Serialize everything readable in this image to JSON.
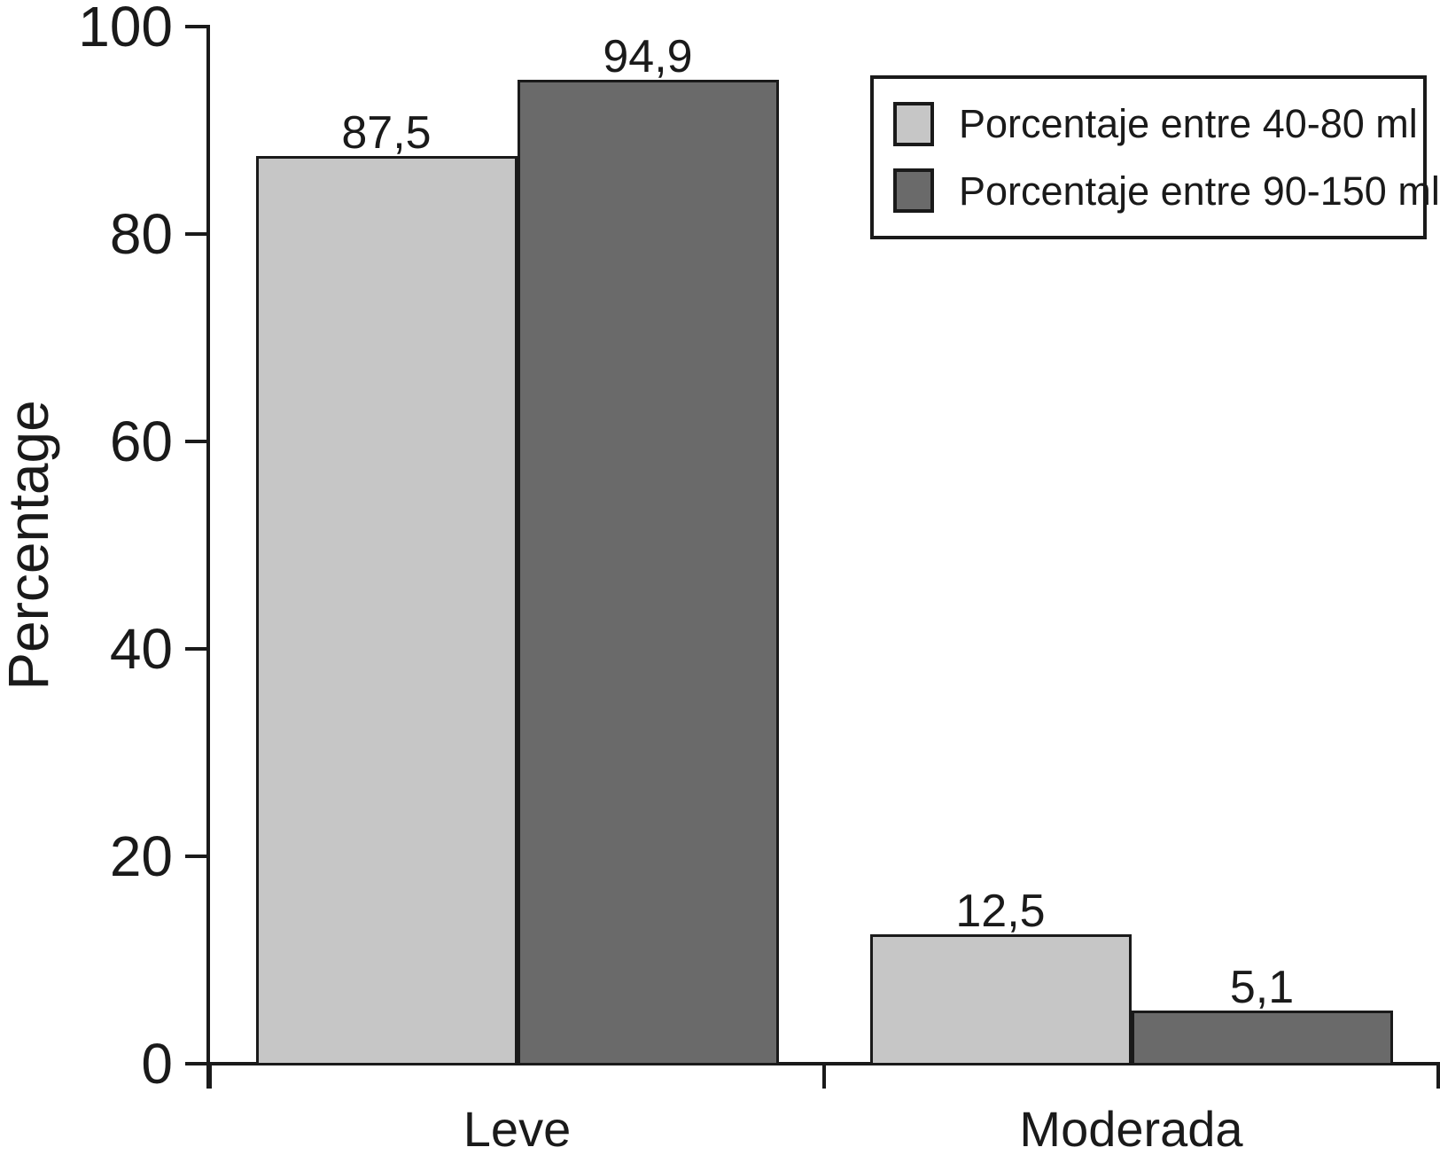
{
  "chart_data": {
    "type": "bar",
    "title": "",
    "ylabel": "Percentage",
    "xlabel": "",
    "ylim": [
      0,
      100
    ],
    "yticks": [
      0,
      20,
      40,
      60,
      80,
      100
    ],
    "ytick_labels": [
      "0",
      "20",
      "40",
      "60",
      "80",
      "100"
    ],
    "grid": false,
    "legend_position": "top-right",
    "decimal_separator": ",",
    "categories": [
      "Leve",
      "Moderada"
    ],
    "series": [
      {
        "name": "Porcentaje entre 40-80 ml",
        "color": "#c6c6c6",
        "values": [
          87.5,
          12.5
        ],
        "value_labels": [
          "87,5",
          "12,5"
        ]
      },
      {
        "name": "Porcentaje entre 90-150 ml",
        "color": "#6a6a6a",
        "values": [
          94.9,
          5.1
        ],
        "value_labels": [
          "94,9",
          "5,1"
        ]
      }
    ],
    "colors": {
      "axis": "#1a1a1a",
      "text": "#1a1a1a",
      "bar_border": "#1a1a1a",
      "background": "#ffffff"
    }
  }
}
